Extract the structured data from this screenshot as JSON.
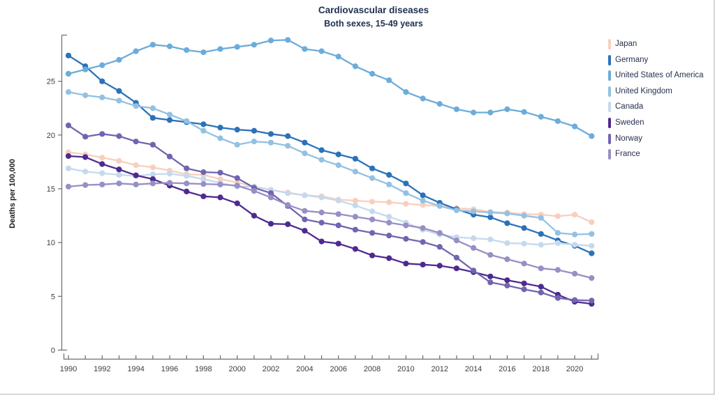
{
  "title": "Cardiovascular diseases",
  "subtitle": "Both sexes, 15-49 years",
  "y_axis_label": "Deaths per 100,000",
  "chart_data": {
    "type": "line",
    "x": [
      1990,
      1991,
      1992,
      1993,
      1994,
      1995,
      1996,
      1997,
      1998,
      1999,
      2000,
      2001,
      2002,
      2003,
      2004,
      2005,
      2006,
      2007,
      2008,
      2009,
      2010,
      2011,
      2012,
      2013,
      2014,
      2015,
      2016,
      2017,
      2018,
      2019,
      2020,
      2021
    ],
    "x_tick_labels": [
      "1990",
      "1992",
      "1994",
      "1996",
      "1998",
      "2000",
      "2002",
      "2004",
      "2006",
      "2008",
      "2010",
      "2012",
      "2014",
      "2016",
      "2018",
      "2020"
    ],
    "y_ticks": [
      0,
      5,
      10,
      15,
      20,
      25
    ],
    "ylim": [
      0,
      29.2
    ],
    "xlim": [
      1989.7,
      2021.4
    ],
    "grid": false,
    "legend_position": "right",
    "marker": "circle",
    "series": [
      {
        "name": "Japan",
        "color": "#f8cfbe",
        "values": [
          18.4,
          18.2,
          17.9,
          17.6,
          17.2,
          17.0,
          16.7,
          16.35,
          16.3,
          15.9,
          15.6,
          15.2,
          14.9,
          14.65,
          14.4,
          14.3,
          14.0,
          13.9,
          13.8,
          13.75,
          13.6,
          13.5,
          13.4,
          13.2,
          13.1,
          12.85,
          12.8,
          12.65,
          12.6,
          12.45,
          12.6,
          11.9
        ]
      },
      {
        "name": "Germany",
        "color": "#2b72b8",
        "values": [
          27.4,
          26.4,
          25.0,
          24.1,
          23.0,
          21.6,
          21.4,
          21.2,
          21.0,
          20.7,
          20.5,
          20.4,
          20.1,
          19.9,
          19.3,
          18.6,
          18.2,
          17.8,
          16.9,
          16.3,
          15.5,
          14.4,
          13.7,
          13.1,
          12.6,
          12.35,
          11.8,
          11.35,
          10.8,
          10.2,
          9.7,
          9.0
        ]
      },
      {
        "name": "United States of America",
        "color": "#6cacda",
        "values": [
          25.7,
          26.1,
          26.5,
          27.0,
          27.8,
          28.4,
          28.25,
          27.9,
          27.7,
          28.0,
          28.2,
          28.4,
          28.8,
          28.85,
          28.0,
          27.8,
          27.3,
          26.4,
          25.7,
          25.1,
          24.0,
          23.4,
          22.9,
          22.4,
          22.1,
          22.1,
          22.4,
          22.15,
          21.7,
          21.3,
          20.8,
          19.9
        ]
      },
      {
        "name": "United Kingdom",
        "color": "#93c1e2",
        "values": [
          24.0,
          23.7,
          23.5,
          23.2,
          22.7,
          22.5,
          21.9,
          21.3,
          20.4,
          19.7,
          19.1,
          19.4,
          19.3,
          19.0,
          18.3,
          17.7,
          17.2,
          16.6,
          16.0,
          15.4,
          14.6,
          13.9,
          13.4,
          13.0,
          12.9,
          12.8,
          12.7,
          12.5,
          12.3,
          10.9,
          10.75,
          10.8
        ]
      },
      {
        "name": "Canada",
        "color": "#c5d9ee",
        "values": [
          16.9,
          16.6,
          16.45,
          16.3,
          16.2,
          16.35,
          16.4,
          16.2,
          15.9,
          15.55,
          15.2,
          15.2,
          14.9,
          14.6,
          14.4,
          14.2,
          13.9,
          13.45,
          12.9,
          12.4,
          11.85,
          11.2,
          10.75,
          10.5,
          10.4,
          10.3,
          9.95,
          9.9,
          9.8,
          9.95,
          9.8,
          9.7
        ]
      },
      {
        "name": "Sweden",
        "color": "#4e2a90",
        "values": [
          18.05,
          17.95,
          17.3,
          16.8,
          16.25,
          15.9,
          15.3,
          14.75,
          14.3,
          14.2,
          13.65,
          12.5,
          11.75,
          11.7,
          11.1,
          10.1,
          9.9,
          9.4,
          8.8,
          8.55,
          8.05,
          7.95,
          7.85,
          7.6,
          7.25,
          6.85,
          6.5,
          6.2,
          5.9,
          5.15,
          4.5,
          4.3
        ]
      },
      {
        "name": "Norway",
        "color": "#7165af",
        "values": [
          20.9,
          19.85,
          20.1,
          19.9,
          19.4,
          19.1,
          18.0,
          16.9,
          16.55,
          16.5,
          16.0,
          15.1,
          14.6,
          13.4,
          12.15,
          11.85,
          11.6,
          11.2,
          10.9,
          10.65,
          10.35,
          10.05,
          9.6,
          8.6,
          7.4,
          6.3,
          6.0,
          5.65,
          5.35,
          4.85,
          4.65,
          4.6
        ]
      },
      {
        "name": "France",
        "color": "#978fc5",
        "values": [
          15.2,
          15.35,
          15.4,
          15.5,
          15.4,
          15.5,
          15.55,
          15.5,
          15.45,
          15.4,
          15.3,
          14.8,
          14.2,
          13.5,
          12.95,
          12.8,
          12.65,
          12.4,
          12.15,
          11.85,
          11.6,
          11.35,
          10.9,
          10.2,
          9.5,
          8.85,
          8.45,
          8.05,
          7.6,
          7.45,
          7.1,
          6.7
        ]
      }
    ]
  }
}
